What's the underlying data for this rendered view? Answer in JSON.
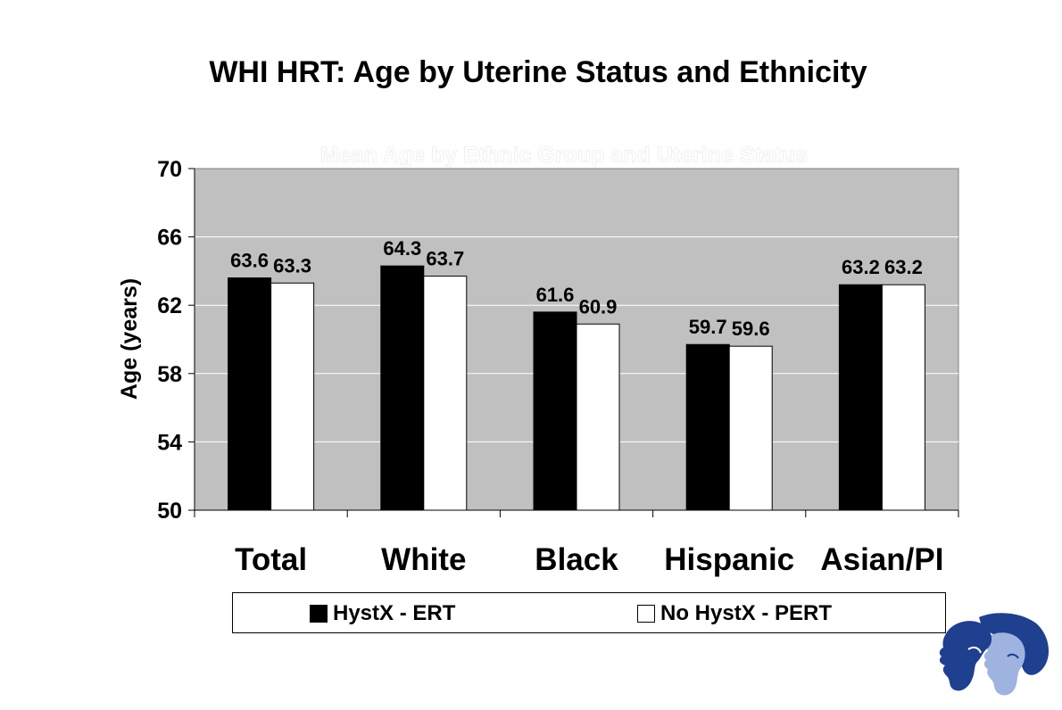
{
  "slide": {
    "title": "WHI HRT: Age by Uterine Status and Ethnicity"
  },
  "chart_data": {
    "type": "bar",
    "title": "Mean Age by Ethnic Group and Uterine Status",
    "ylabel": "Age (years)",
    "xlabel": "",
    "categories": [
      "Total",
      "White",
      "Black",
      "Hispanic",
      "Asian/PI"
    ],
    "series": [
      {
        "name": "HystX - ERT",
        "values": [
          63.6,
          64.3,
          61.6,
          59.7,
          63.2
        ],
        "color": "#000000"
      },
      {
        "name": "No HystX - PERT",
        "values": [
          63.3,
          63.7,
          60.9,
          59.6,
          63.2
        ],
        "color": "#ffffff"
      }
    ],
    "ylim": [
      50,
      70
    ],
    "yticks": [
      50,
      54,
      58,
      62,
      66,
      70
    ],
    "grid": true,
    "plot_background": "#c0c0c0",
    "legend_position": "bottom"
  }
}
